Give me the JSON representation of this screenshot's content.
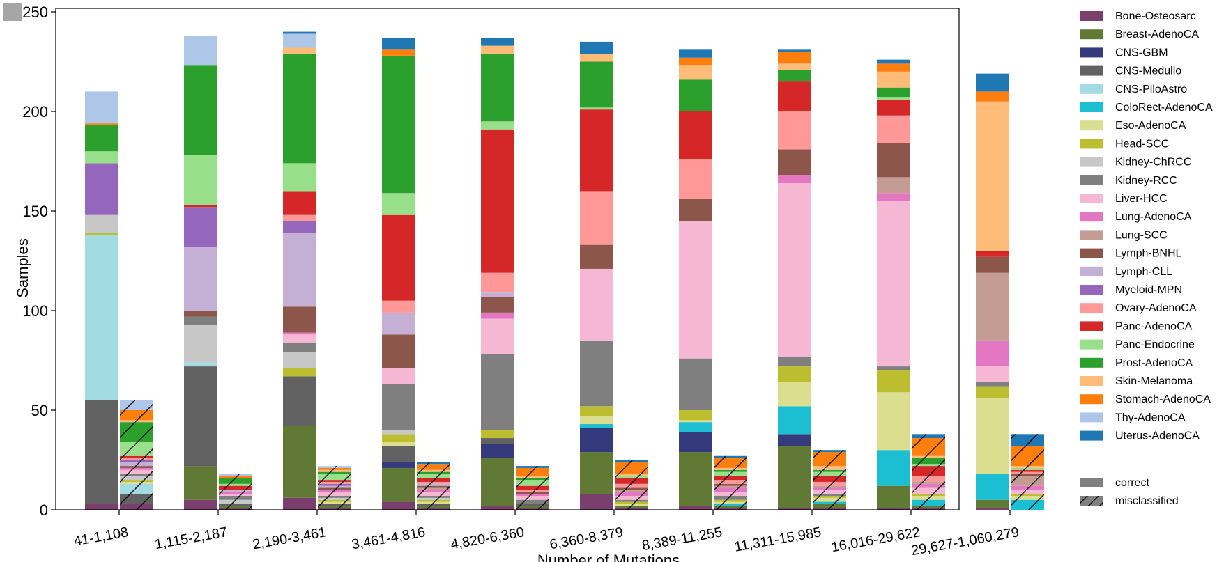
{
  "chart_data": {
    "type": "bar",
    "subtype": "paired stacked bars (correct vs misclassified)",
    "xlabel": "Number of Mutations",
    "ylabel": "Samples",
    "ylim": [
      0,
      250
    ],
    "yticks": [
      0,
      50,
      100,
      150,
      200,
      250
    ],
    "grid": false,
    "legend_position": "right",
    "categories": [
      "41-1,108",
      "1,115-2,187",
      "2,190-3,461",
      "3,461-4,816",
      "4,820-6,360",
      "6,360-8,379",
      "8,389-11,255",
      "11,311-15,985",
      "16,016-29,622",
      "29,627-1,060,279"
    ],
    "series": [
      {
        "name": "Bone-Osteosarc",
        "color": "#7b3f6e",
        "correct": [
          3,
          5,
          6,
          4,
          2,
          8,
          2,
          1,
          1,
          1
        ],
        "misclassified": [
          3,
          1,
          1,
          1,
          1,
          1,
          1,
          1,
          1,
          0
        ]
      },
      {
        "name": "Breast-AdenoCA",
        "color": "#607a35",
        "correct": [
          0,
          17,
          36,
          17,
          24,
          21,
          27,
          31,
          11,
          4
        ],
        "misclassified": [
          0,
          1,
          1,
          1,
          1,
          1,
          1,
          2,
          1,
          0
        ]
      },
      {
        "name": "CNS-GBM",
        "color": "#343a7b",
        "correct": [
          0,
          0,
          0,
          3,
          7,
          12,
          10,
          6,
          0,
          0
        ],
        "misclassified": [
          0,
          0,
          0,
          0,
          0,
          0,
          0,
          0,
          0,
          0
        ]
      },
      {
        "name": "CNS-Medullo",
        "color": "#626262",
        "correct": [
          52,
          50,
          25,
          8,
          3,
          0,
          0,
          0,
          0,
          0
        ],
        "misclassified": [
          5,
          1,
          1,
          1,
          1,
          0,
          0,
          0,
          0,
          0
        ]
      },
      {
        "name": "CNS-PiloAstro",
        "color": "#a3dbe3",
        "correct": [
          83,
          2,
          0,
          0,
          0,
          0,
          0,
          0,
          0,
          0
        ],
        "misclassified": [
          5,
          0,
          0,
          0,
          0,
          0,
          0,
          0,
          0,
          0
        ]
      },
      {
        "name": "ColoRect-AdenoCA",
        "color": "#1bbfd1",
        "correct": [
          0,
          0,
          0,
          0,
          0,
          2,
          5,
          14,
          18,
          13
        ],
        "misclassified": [
          0,
          0,
          0,
          0,
          0,
          0,
          1,
          1,
          3,
          5
        ]
      },
      {
        "name": "Eso-AdenoCA",
        "color": "#dbdd8f",
        "correct": [
          0,
          0,
          0,
          2,
          0,
          4,
          1,
          12,
          29,
          38
        ],
        "misclassified": [
          1,
          0,
          1,
          1,
          0,
          1,
          1,
          2,
          2,
          2
        ]
      },
      {
        "name": "Head-SCC",
        "color": "#bcbd2f",
        "correct": [
          1,
          0,
          4,
          4,
          4,
          5,
          5,
          8,
          11,
          6
        ],
        "misclassified": [
          1,
          0,
          1,
          1,
          0,
          1,
          1,
          1,
          1,
          1
        ]
      },
      {
        "name": "Kidney-ChRCC",
        "color": "#c7c7c7",
        "correct": [
          9,
          19,
          8,
          2,
          0,
          0,
          0,
          0,
          0,
          0
        ],
        "misclassified": [
          2,
          2,
          1,
          1,
          0,
          0,
          0,
          0,
          0,
          0
        ]
      },
      {
        "name": "Kidney-RCC",
        "color": "#7f7f7f",
        "correct": [
          0,
          4,
          5,
          23,
          38,
          33,
          26,
          5,
          2,
          2
        ],
        "misclassified": [
          1,
          2,
          1,
          1,
          2,
          1,
          2,
          1,
          0,
          0
        ]
      },
      {
        "name": "Liver-HCC",
        "color": "#f5b7d3",
        "correct": [
          0,
          0,
          4,
          8,
          18,
          36,
          69,
          87,
          83,
          8
        ],
        "misclassified": [
          2,
          1,
          2,
          2,
          2,
          2,
          2,
          2,
          3,
          2
        ]
      },
      {
        "name": "Lung-AdenoCA",
        "color": "#e377c2",
        "correct": [
          0,
          0,
          1,
          0,
          3,
          0,
          0,
          4,
          4,
          13
        ],
        "misclassified": [
          1,
          1,
          1,
          1,
          1,
          2,
          2,
          1,
          2,
          2
        ]
      },
      {
        "name": "Lung-SCC",
        "color": "#c49c94",
        "correct": [
          0,
          0,
          0,
          0,
          0,
          0,
          0,
          0,
          8,
          34
        ],
        "misclassified": [
          0,
          0,
          0,
          1,
          0,
          1,
          1,
          1,
          1,
          5
        ]
      },
      {
        "name": "Lymph-BNHL",
        "color": "#8c564b",
        "correct": [
          0,
          3,
          13,
          17,
          8,
          12,
          11,
          13,
          17,
          8
        ],
        "misclassified": [
          1,
          0,
          1,
          1,
          1,
          1,
          1,
          0,
          0,
          1
        ]
      },
      {
        "name": "Lymph-CLL",
        "color": "#c5b0d5",
        "correct": [
          0,
          32,
          37,
          11,
          2,
          0,
          0,
          0,
          0,
          0
        ],
        "misclassified": [
          2,
          1,
          1,
          1,
          0,
          0,
          0,
          0,
          0,
          0
        ]
      },
      {
        "name": "Myeloid-MPN",
        "color": "#9467bd",
        "correct": [
          26,
          20,
          6,
          0,
          0,
          0,
          0,
          0,
          0,
          0
        ],
        "misclassified": [
          1,
          0,
          1,
          0,
          0,
          0,
          0,
          0,
          0,
          0
        ]
      },
      {
        "name": "Ovary-AdenoCA",
        "color": "#ff9896",
        "correct": [
          0,
          0,
          3,
          6,
          10,
          27,
          20,
          19,
          14,
          0
        ],
        "misclassified": [
          1,
          0,
          1,
          1,
          1,
          2,
          2,
          2,
          3,
          1
        ]
      },
      {
        "name": "Panc-AdenoCA",
        "color": "#d62728",
        "correct": [
          0,
          1,
          12,
          43,
          72,
          41,
          24,
          15,
          8,
          3
        ],
        "misclassified": [
          1,
          2,
          1,
          2,
          2,
          3,
          2,
          3,
          5,
          1
        ]
      },
      {
        "name": "Panc-Endocrine",
        "color": "#98df8a",
        "correct": [
          6,
          25,
          14,
          11,
          4,
          1,
          0,
          0,
          1,
          0
        ],
        "misclassified": [
          7,
          1,
          3,
          2,
          3,
          1,
          2,
          2,
          1,
          1
        ]
      },
      {
        "name": "Prost-AdenoCA",
        "color": "#2ca02c",
        "correct": [
          13,
          45,
          55,
          69,
          34,
          23,
          16,
          6,
          5,
          0
        ],
        "misclassified": [
          10,
          3,
          1,
          1,
          1,
          0,
          1,
          1,
          3,
          0
        ]
      },
      {
        "name": "Skin-Melanoma",
        "color": "#ffbb78",
        "correct": [
          0,
          0,
          3,
          0,
          4,
          4,
          7,
          3,
          8,
          75
        ],
        "misclassified": [
          1,
          0,
          1,
          1,
          1,
          1,
          1,
          2,
          1,
          1
        ]
      },
      {
        "name": "Stomach-AdenoCA",
        "color": "#ff7f0e",
        "correct": [
          1,
          0,
          0,
          3,
          0,
          0,
          4,
          6,
          4,
          5
        ],
        "misclassified": [
          5,
          1,
          1,
          3,
          4,
          6,
          5,
          7,
          9,
          10
        ]
      },
      {
        "name": "Thy-AdenoCA",
        "color": "#aec7e8",
        "correct": [
          16,
          15,
          7,
          0,
          0,
          0,
          0,
          0,
          0,
          0
        ],
        "misclassified": [
          5,
          1,
          1,
          0,
          0,
          0,
          0,
          0,
          0,
          0
        ]
      },
      {
        "name": "Uterus-AdenoCA",
        "color": "#1f77b4",
        "correct": [
          0,
          0,
          1,
          6,
          4,
          6,
          4,
          1,
          2,
          9
        ],
        "misclassified": [
          0,
          0,
          0,
          1,
          1,
          1,
          1,
          1,
          2,
          6
        ]
      }
    ],
    "group_legend": [
      {
        "name": "correct",
        "pattern": "solid",
        "color": "#808080"
      },
      {
        "name": "misclassified",
        "pattern": "hatched",
        "color": "#808080"
      }
    ]
  }
}
